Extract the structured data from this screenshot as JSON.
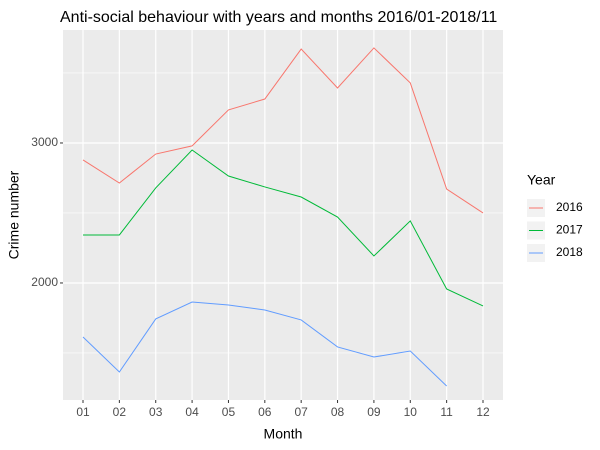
{
  "chart_data": {
    "type": "line",
    "title": "Anti-social behaviour with years and months 2016/01-2018/11",
    "x_label": "Month",
    "y_label": "Crime number",
    "categories": [
      "01",
      "02",
      "03",
      "04",
      "05",
      "06",
      "07",
      "08",
      "09",
      "10",
      "11",
      "12"
    ],
    "series": [
      {
        "name": "2016",
        "color": "#F8766D",
        "values": [
          2879,
          2714,
          2921,
          2979,
          3236,
          3314,
          3671,
          3393,
          3679,
          3429,
          2671,
          2500
        ]
      },
      {
        "name": "2017",
        "color": "#00BA38",
        "values": [
          2343,
          2343,
          2679,
          2950,
          2764,
          2686,
          2614,
          2471,
          2193,
          2443,
          1957,
          1836
        ]
      },
      {
        "name": "2018",
        "color": "#619CFF",
        "values": [
          1614,
          1364,
          1743,
          1864,
          1843,
          1807,
          1736,
          1543,
          1471,
          1514,
          1264,
          null
        ]
      }
    ],
    "ylim": [
      1164,
      3807
    ],
    "yticks": [
      2000,
      3000
    ],
    "yminorticks": [
      1500,
      2500,
      3500
    ],
    "grid": true,
    "legend_title": "Year",
    "legend": "right"
  }
}
